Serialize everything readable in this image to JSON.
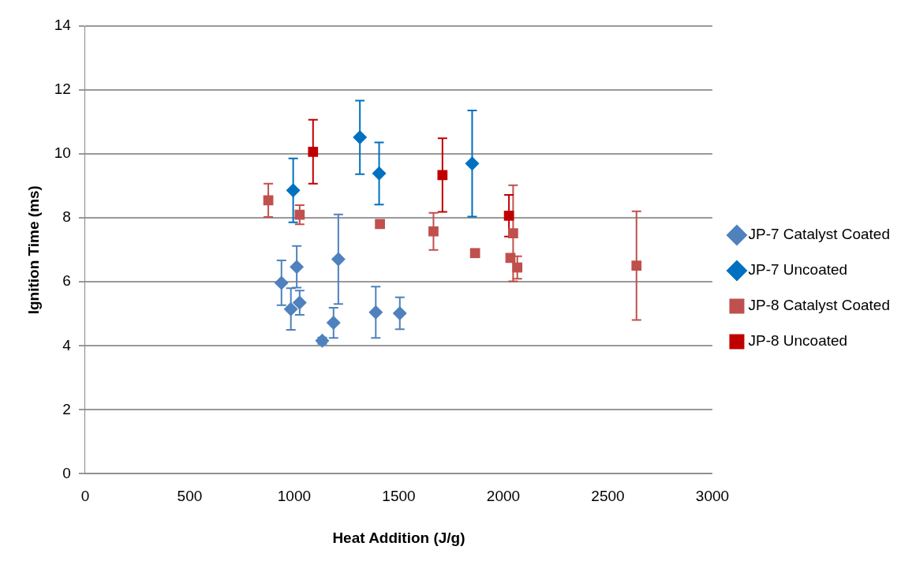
{
  "chart_data": {
    "type": "scatter",
    "xlabel": "Heat Addition (J/g)",
    "ylabel": "Ignition Time (ms)",
    "xlim": [
      0,
      3000
    ],
    "xticks": [
      0,
      500,
      1000,
      1500,
      2000,
      2500,
      3000
    ],
    "ylim": [
      0,
      14
    ],
    "yticks": [
      0,
      2,
      4,
      6,
      8,
      10,
      12,
      14
    ],
    "grid": "y",
    "legend": "right",
    "series": [
      {
        "name": "JP-7 Catalyst Coated",
        "color": "#4f81bd",
        "marker": "diamond",
        "x": [
          939,
          1012,
          984,
          1026,
          1211,
          1188,
          1134,
          1390,
          1505
        ],
        "values": [
          5.97,
          6.47,
          5.15,
          5.35,
          6.71,
          4.72,
          4.16,
          5.05,
          5.02
        ],
        "errors": [
          0.7,
          0.65,
          0.65,
          0.38,
          1.4,
          0.47,
          0.1,
          0.8,
          0.5
        ]
      },
      {
        "name": "JP-7 Uncoated",
        "color": "#0070c0",
        "marker": "diamond",
        "x": [
          995,
          1314,
          1406,
          1851
        ],
        "values": [
          8.86,
          10.52,
          9.39,
          9.7
        ],
        "errors": [
          1.0,
          1.15,
          0.97,
          1.66
        ]
      },
      {
        "name": "JP-8 Catalyst Coated",
        "color": "#c0504d",
        "marker": "square",
        "x": [
          876,
          1026,
          1410,
          1666,
          1865,
          2047,
          2040,
          2034,
          2067,
          2637
        ],
        "values": [
          8.55,
          8.1,
          7.81,
          7.58,
          6.9,
          7.52,
          null,
          6.75,
          6.45,
          6.51
        ],
        "errors": [
          0.52,
          0.3,
          null,
          0.58,
          null,
          1.5,
          null,
          null,
          0.35,
          1.7
        ]
      },
      {
        "name": "JP-8 Uncoated",
        "color": "#c00000",
        "marker": "square",
        "x": [
          1090,
          1709,
          2027
        ],
        "values": [
          10.07,
          9.34,
          8.07
        ],
        "errors": [
          1.0,
          1.15,
          0.65
        ]
      }
    ]
  }
}
